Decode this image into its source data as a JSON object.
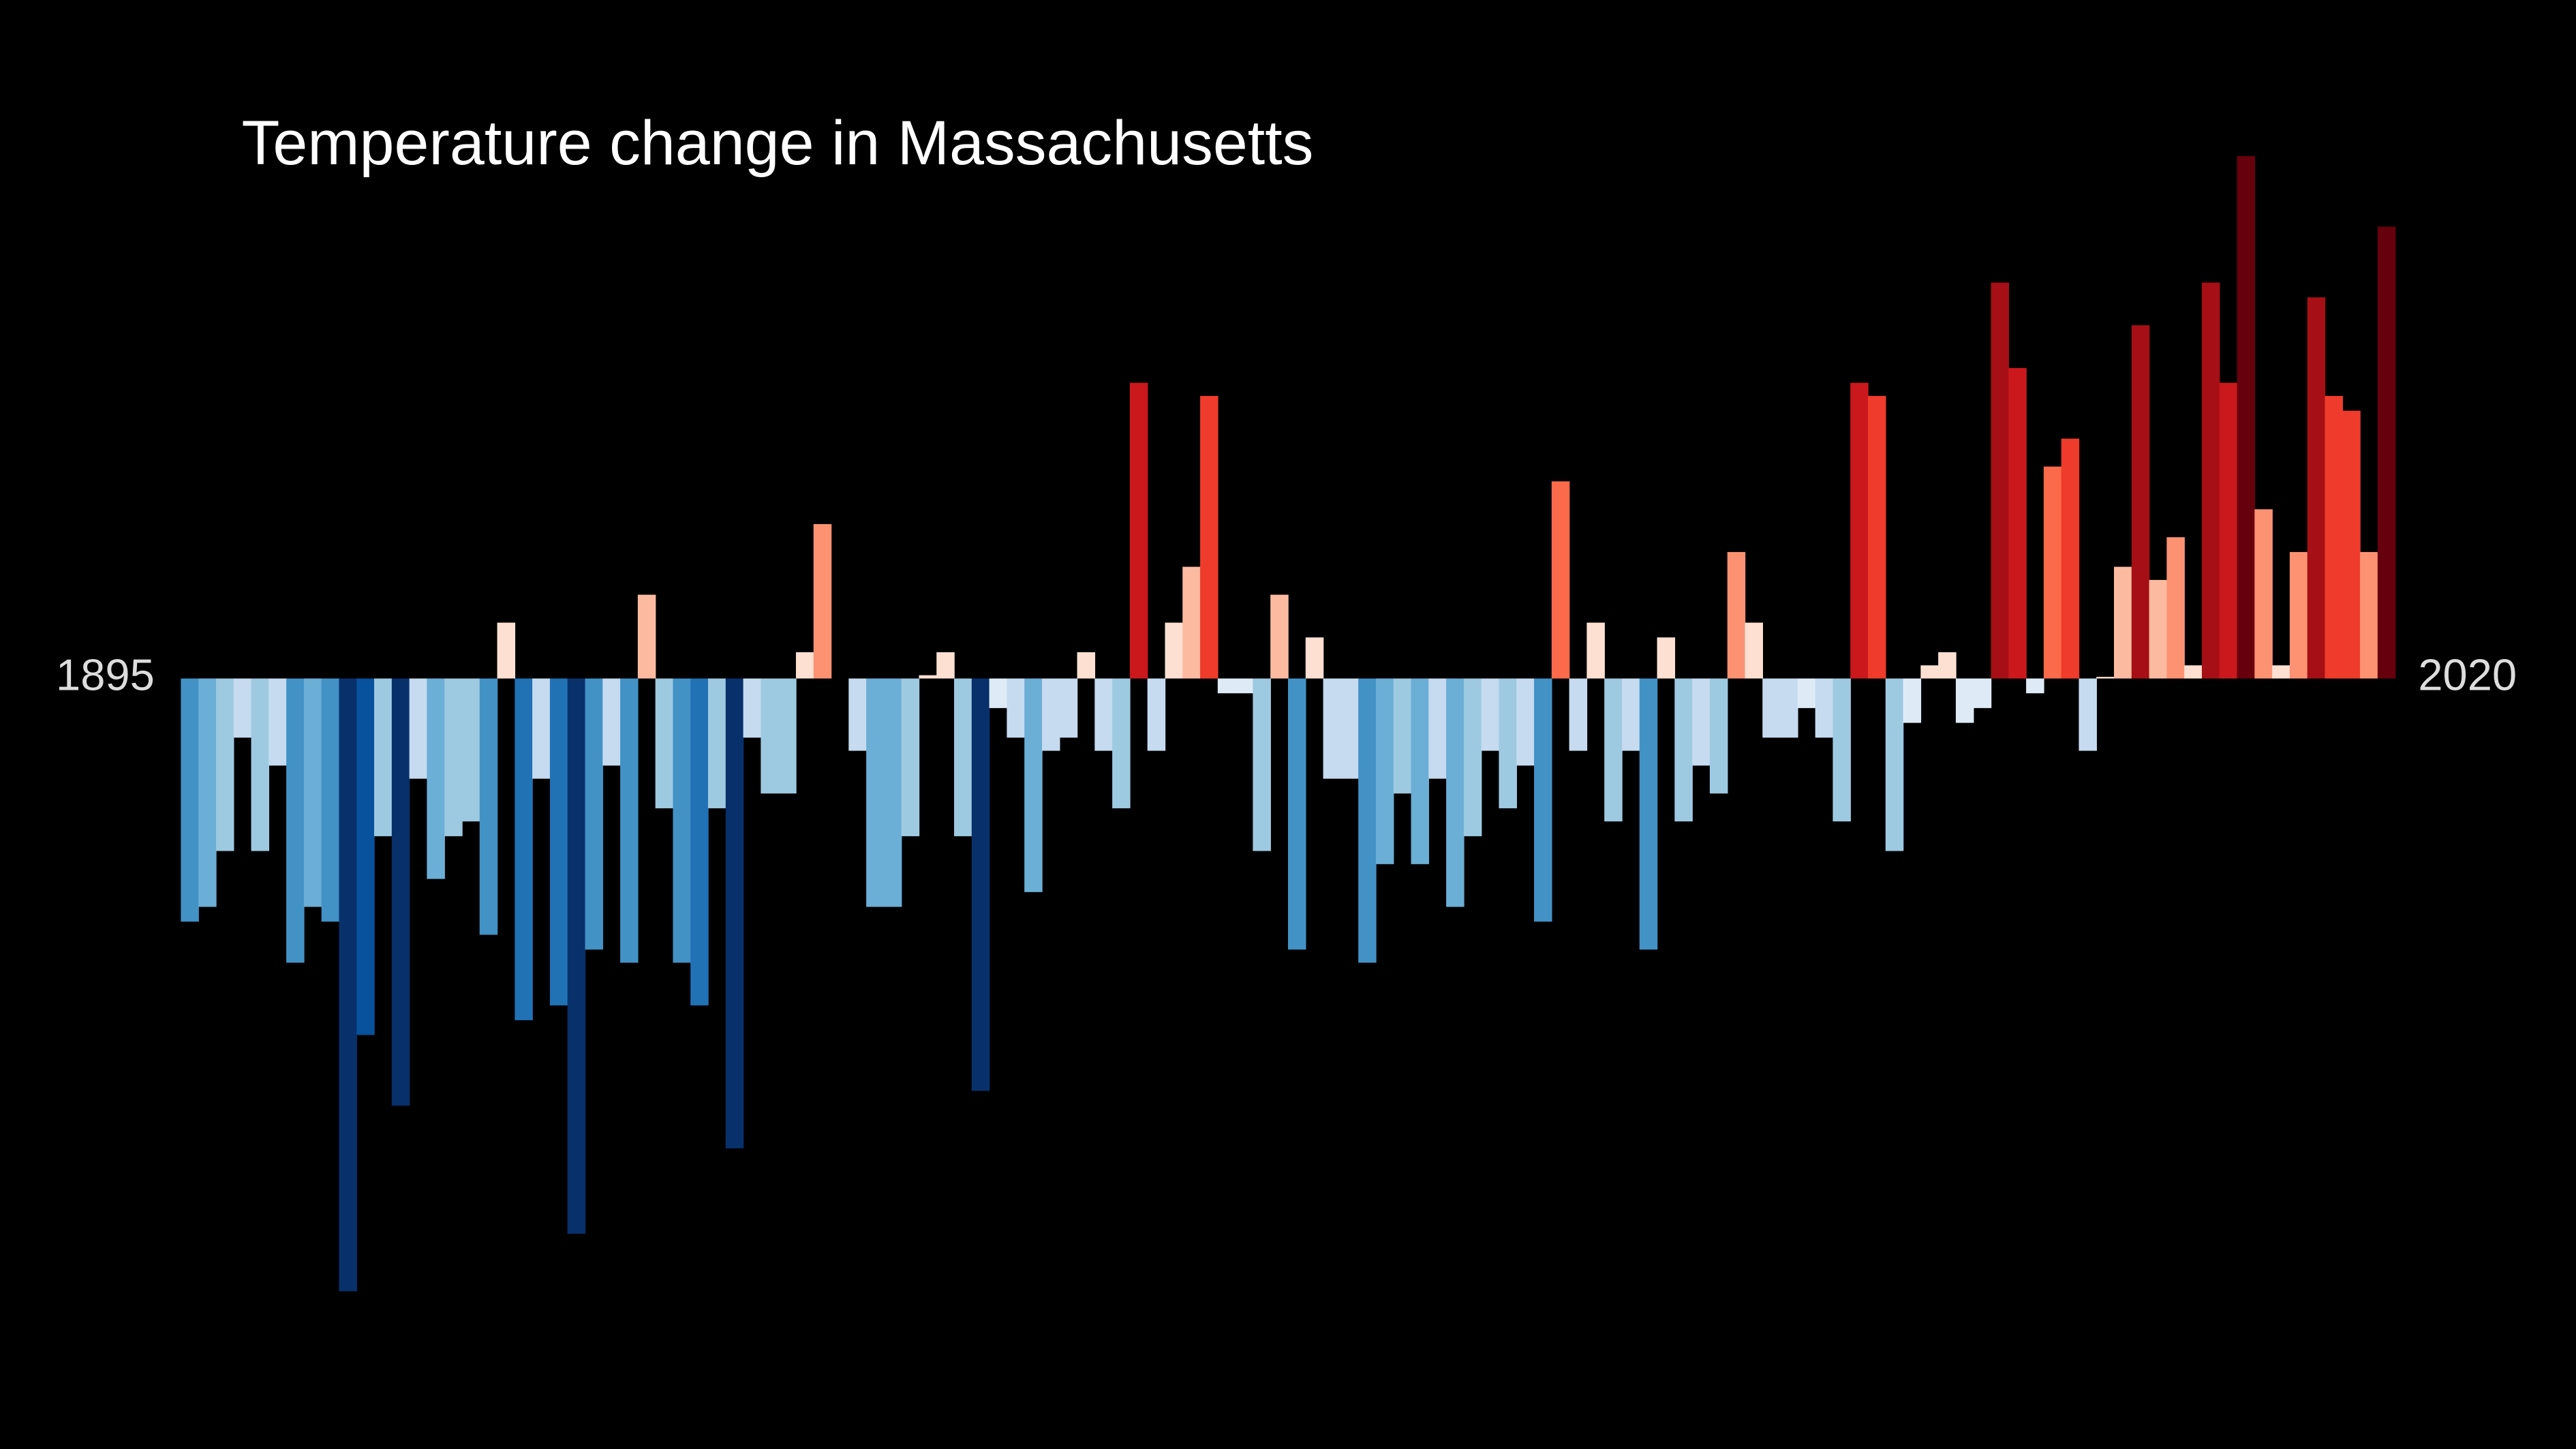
{
  "chart_data": {
    "type": "bar",
    "title": "Temperature change in Massachusetts",
    "categories": [
      1895,
      null,
      null,
      null,
      null,
      null,
      null,
      null,
      null,
      null,
      null,
      null,
      null,
      null,
      null,
      null,
      null,
      null,
      null,
      null,
      null,
      null,
      null,
      null,
      null,
      null,
      null,
      null,
      null,
      null,
      null,
      null,
      null,
      null,
      null,
      null,
      null,
      null,
      null,
      null,
      null,
      null,
      null,
      null,
      null,
      null,
      null,
      null,
      null,
      null,
      null,
      null,
      null,
      null,
      null,
      null,
      null,
      null,
      null,
      null,
      null,
      null,
      null,
      null,
      null,
      null,
      null,
      null,
      null,
      null,
      null,
      null,
      null,
      null,
      null,
      null,
      null,
      null,
      null,
      null,
      null,
      null,
      null,
      null,
      null,
      null,
      null,
      null,
      null,
      null,
      null,
      null,
      null,
      null,
      null,
      null,
      null,
      null,
      null,
      null,
      null,
      null,
      null,
      null,
      null,
      null,
      null,
      null,
      null,
      null,
      null,
      null,
      null,
      null,
      null,
      null,
      null,
      null,
      null,
      null,
      null,
      null,
      null,
      null,
      null,
      2020
    ],
    "values": [
      -1.48,
      -1.39,
      -1.05,
      -0.36,
      -1.05,
      -0.53,
      -1.73,
      -1.39,
      -1.48,
      -3.73,
      -2.17,
      -0.96,
      -2.6,
      -0.61,
      -1.22,
      -0.96,
      -0.87,
      -1.56,
      0.34,
      -2.08,
      -0.61,
      -1.99,
      -3.38,
      -1.65,
      -0.53,
      -1.73,
      0.51,
      -0.79,
      -1.73,
      -1.99,
      -0.79,
      -2.86,
      -0.36,
      -0.7,
      -0.7,
      0.16,
      0.94,
      0,
      -0.44,
      -1.39,
      -1.39,
      -0.96,
      0.02,
      0.16,
      -0.96,
      -2.51,
      -0.18,
      -0.36,
      -1.3,
      -0.44,
      -0.36,
      0.16,
      -0.44,
      -0.79,
      1.8,
      -0.44,
      0.34,
      0.68,
      1.72,
      -0.09,
      -0.09,
      -1.05,
      0.51,
      -1.65,
      0.25,
      -0.61,
      -0.61,
      -1.73,
      -1.13,
      -0.7,
      -1.13,
      -0.61,
      -1.39,
      -0.96,
      -0.44,
      -0.79,
      -0.53,
      -1.48,
      1.2,
      -0.44,
      0.34,
      -0.87,
      -0.44,
      -1.65,
      0.25,
      -0.87,
      -0.53,
      -0.7,
      0.77,
      0.34,
      -0.36,
      -0.36,
      -0.18,
      -0.36,
      -0.87,
      1.8,
      1.72,
      -1.05,
      -0.27,
      0.08,
      0.16,
      -0.27,
      -0.18,
      2.41,
      1.89,
      -0.09,
      1.29,
      1.46,
      -0.44,
      0.01,
      0.68,
      2.15,
      0.6,
      0.86,
      0.08,
      2.41,
      1.8,
      3.18,
      1.03,
      0.08,
      0.77,
      2.32,
      1.72,
      1.63,
      0.77,
      2.75
    ],
    "ylim": [
      -3.73,
      3.18
    ],
    "colormap": [
      "#08306b",
      "#08519c",
      "#2171b5",
      "#4292c6",
      "#6baed6",
      "#9ecae1",
      "#c6dbef",
      "#deebf7",
      "#fee0d2",
      "#fcbba1",
      "#fc9272",
      "#fb6a4a",
      "#ef3b2c",
      "#cb181d",
      "#a50f15",
      "#67000d"
    ],
    "clim": [
      -2.8,
      2.8
    ],
    "background": "#000000"
  }
}
